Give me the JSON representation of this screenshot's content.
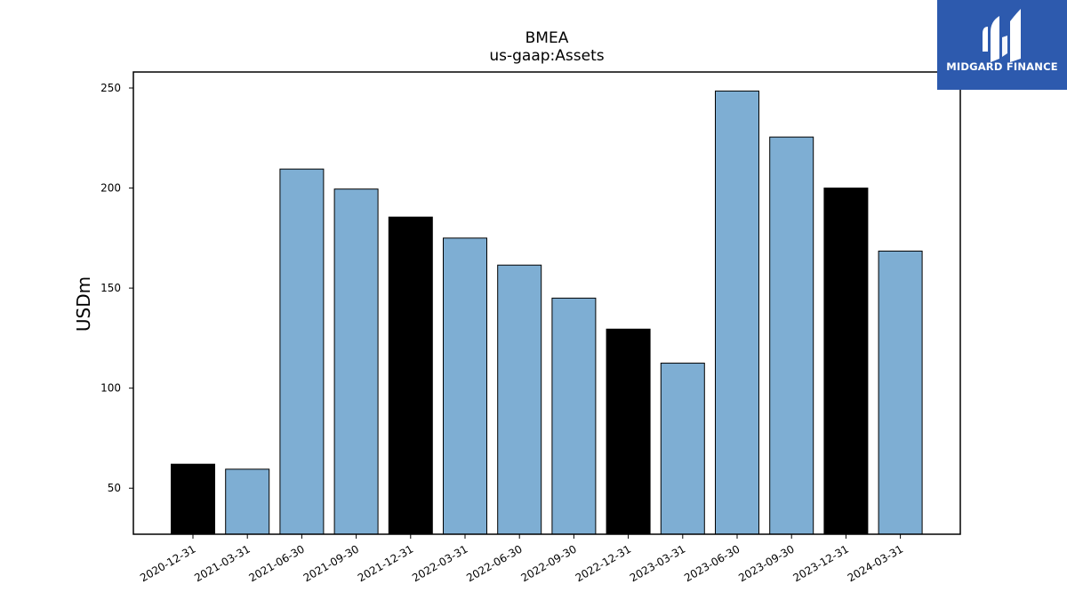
{
  "chart_data": {
    "type": "bar",
    "title": "BMEA",
    "subtitle": "us-gaap:Assets",
    "ylabel": "USDm",
    "xlabel": "",
    "ylim": [
      27,
      258
    ],
    "yticks": [
      50,
      100,
      150,
      200,
      250
    ],
    "grid": false,
    "categories": [
      "2020-12-31",
      "2021-03-31",
      "2021-06-30",
      "2021-09-30",
      "2021-12-31",
      "2022-03-31",
      "2022-06-30",
      "2022-09-30",
      "2022-12-31",
      "2023-03-31",
      "2023-06-30",
      "2023-09-30",
      "2023-12-31",
      "2024-03-31"
    ],
    "values": [
      62,
      59.5,
      209.5,
      199.5,
      185.5,
      175,
      161.5,
      145,
      129.5,
      112.5,
      248.5,
      225.5,
      200,
      168.5
    ],
    "bar_colors": [
      "#000000",
      "#7eaed3",
      "#7eaed3",
      "#7eaed3",
      "#000000",
      "#7eaed3",
      "#7eaed3",
      "#7eaed3",
      "#000000",
      "#7eaed3",
      "#7eaed3",
      "#7eaed3",
      "#000000",
      "#7eaed3"
    ]
  },
  "logo": {
    "text": "MIDGARD FINANCE",
    "background": "#2d5aae",
    "icon": "midgard-logo-icon"
  }
}
